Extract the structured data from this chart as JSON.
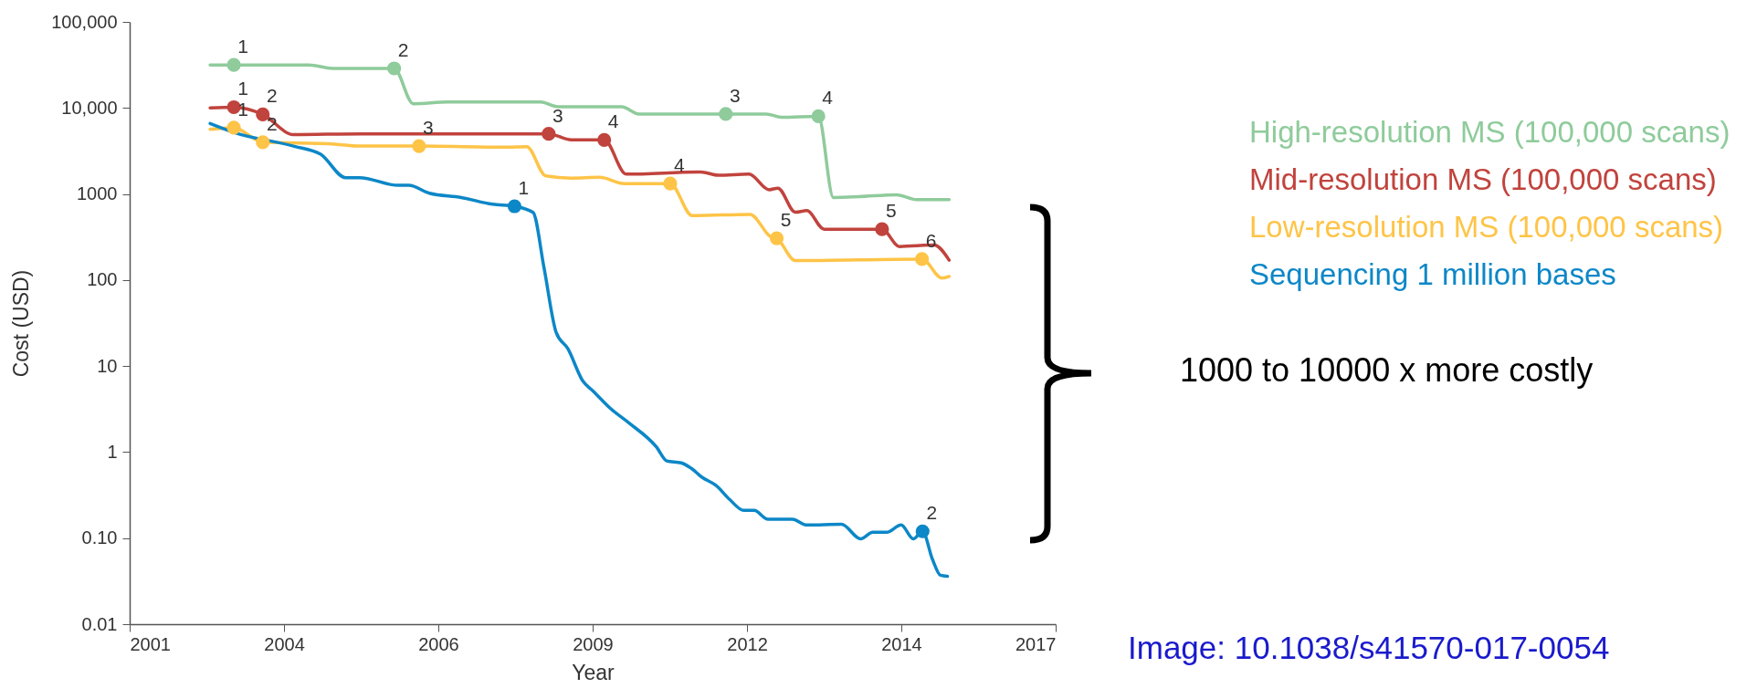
{
  "chart_data": {
    "type": "line",
    "xlabel": "Year",
    "ylabel": "Cost (USD)",
    "log": "y",
    "grid": false,
    "legend": "right",
    "line_style": "solid",
    "xlim": [
      2001,
      2017
    ],
    "xticks": [
      2001,
      {
        "value": 2003.667,
        "label": "2004"
      },
      {
        "value": 2006.333,
        "label": "2006"
      },
      2009,
      {
        "value": 2011.667,
        "label": "2012"
      },
      {
        "value": 2014.333,
        "label": "2014"
      },
      2017
    ],
    "ylim": [
      0.01,
      100000
    ],
    "yticks": [
      0.01,
      {
        "value": 0.1,
        "label": "0.10"
      },
      1,
      10,
      100,
      1000,
      {
        "value": 10000,
        "label": "10,000"
      },
      {
        "value": 100000,
        "label": "100,000"
      }
    ],
    "series": [
      {
        "name": "High-resolution MS (100,000 scans)",
        "color": "#8fcb9b",
        "x": [
          2002.39,
          2002.8,
          2004.1,
          2004.5,
          2005.57,
          2005.9,
          2006.5,
          2007.5,
          2008.1,
          2008.4,
          2009.5,
          2009.8,
          2011.3,
          2012.0,
          2012.26,
          2012.9,
          2013.16,
          2013.6,
          2014.25,
          2014.6,
          2015.16
        ],
        "values": [
          31600,
          31600,
          31600,
          28800,
          28800,
          11200,
          11700,
          11700,
          11700,
          10300,
          10300,
          8500,
          8500,
          8500,
          7800,
          8000,
          910,
          930,
          980,
          860,
          860
        ]
      },
      {
        "name": "Mid-resolution MS (100,000 scans)",
        "color": "#c1433d",
        "x": [
          2002.39,
          2002.8,
          2003.3,
          2003.83,
          2005.0,
          2008.24,
          2008.63,
          2009.2,
          2009.58,
          2010.87,
          2011.17,
          2011.7,
          2012.05,
          2012.2,
          2012.5,
          2012.7,
          2013.0,
          2014.0,
          2014.3,
          2014.9,
          2015.16
        ],
        "values": [
          10000,
          10200,
          8400,
          4900,
          5000,
          5000,
          4250,
          4250,
          1700,
          1800,
          1650,
          1700,
          1120,
          1170,
          615,
          640,
          390,
          390,
          245,
          255,
          170
        ]
      },
      {
        "name": "Low-resolution MS (100,000 scans)",
        "color": "#fec447",
        "x": [
          2002.39,
          2002.8,
          2003.3,
          2004.55,
          2004.97,
          2006.0,
          2007.5,
          2007.86,
          2008.19,
          2008.63,
          2009.12,
          2009.55,
          2010.34,
          2010.72,
          2011.72,
          2012.08,
          2012.18,
          2012.5,
          2014.69,
          2015.04,
          2015.16
        ],
        "values": [
          5650,
          5900,
          4000,
          3800,
          3600,
          3600,
          3500,
          3550,
          1620,
          1530,
          1560,
          1320,
          1320,
          560,
          580,
          318,
          305,
          168,
          175,
          105,
          110
        ]
      },
      {
        "name": "Sequencing 1 million bases",
        "color": "#0c87c7",
        "x": [
          2002.39,
          2002.8,
          2003.83,
          2004.3,
          2004.73,
          2004.97,
          2005.64,
          2005.82,
          2006.18,
          2006.73,
          2007.27,
          2007.65,
          2007.97,
          2008.16,
          2008.37,
          2008.57,
          2008.83,
          2009.01,
          2009.31,
          2009.62,
          2010.1,
          2010.28,
          2010.53,
          2010.7,
          2010.89,
          2011.13,
          2011.37,
          2011.61,
          2011.79,
          2012.03,
          2012.45,
          2012.7,
          2013.3,
          2013.63,
          2013.84,
          2014.08,
          2014.33,
          2014.54,
          2014.7,
          2014.87,
          2015.01,
          2015.13
        ],
        "values": [
          6600,
          5200,
          3600,
          2900,
          1550,
          1550,
          1260,
          1260,
          1020,
          910,
          760,
          720,
          610,
          138,
          24.5,
          16,
          6.7,
          5.1,
          3.2,
          2.2,
          1.15,
          0.79,
          0.75,
          0.65,
          0.51,
          0.41,
          0.28,
          0.21,
          0.21,
          0.166,
          0.166,
          0.142,
          0.145,
          0.098,
          0.117,
          0.117,
          0.142,
          0.098,
          0.12,
          0.057,
          0.037,
          0.036
        ]
      },
      {
        "type": "scatter",
        "color": "#8fcb9b",
        "x": [
          2002.8,
          2005.57,
          2011.3,
          2012.9
        ],
        "values": [
          31600,
          28800,
          8500,
          8000
        ]
      },
      {
        "type": "scatter",
        "color": "#c1433d",
        "x": [
          2002.8,
          2003.3,
          2008.24,
          2009.2,
          2014.0
        ],
        "values": [
          10200,
          8400,
          5000,
          4250,
          390
        ]
      },
      {
        "type": "scatter",
        "color": "#fec447",
        "x": [
          2002.8,
          2003.3,
          2006.0,
          2010.34,
          2012.18,
          2014.69
        ],
        "values": [
          5900,
          4000,
          3600,
          1320,
          305,
          175
        ]
      },
      {
        "type": "scatter",
        "color": "#0c87c7",
        "x": [
          2007.65,
          2014.7
        ],
        "values": [
          720,
          0.12
        ]
      }
    ],
    "annotations": [
      "1000 to 10000 x more costly",
      "Image: 10.1038/s41570-017-0054",
      {
        "text": "1",
        "x": 2002.8,
        "y": 31600
      },
      {
        "text": "2",
        "x": 2005.57,
        "y": 28800
      },
      {
        "text": "3",
        "x": 2011.3,
        "y": 8500
      },
      {
        "text": "4",
        "x": 2012.9,
        "y": 8000
      },
      {
        "text": "1",
        "x": 2002.8,
        "y": 10200
      },
      {
        "text": "2",
        "x": 2003.3,
        "y": 8400
      },
      {
        "text": "3",
        "x": 2008.24,
        "y": 5000
      },
      {
        "text": "4",
        "x": 2009.2,
        "y": 4250
      },
      {
        "text": "5",
        "x": 2014.0,
        "y": 390
      },
      {
        "text": "1",
        "x": 2002.8,
        "y": 5900
      },
      {
        "text": "2",
        "x": 2003.3,
        "y": 4000
      },
      {
        "text": "3",
        "x": 2006.0,
        "y": 3600
      },
      {
        "text": "4",
        "x": 2010.34,
        "y": 1320
      },
      {
        "text": "5",
        "x": 2012.18,
        "y": 305
      },
      {
        "text": "6",
        "x": 2014.69,
        "y": 175
      },
      {
        "text": "1",
        "x": 2007.65,
        "y": 720
      },
      {
        "text": "2",
        "x": 2014.7,
        "y": 0.12
      }
    ]
  }
}
